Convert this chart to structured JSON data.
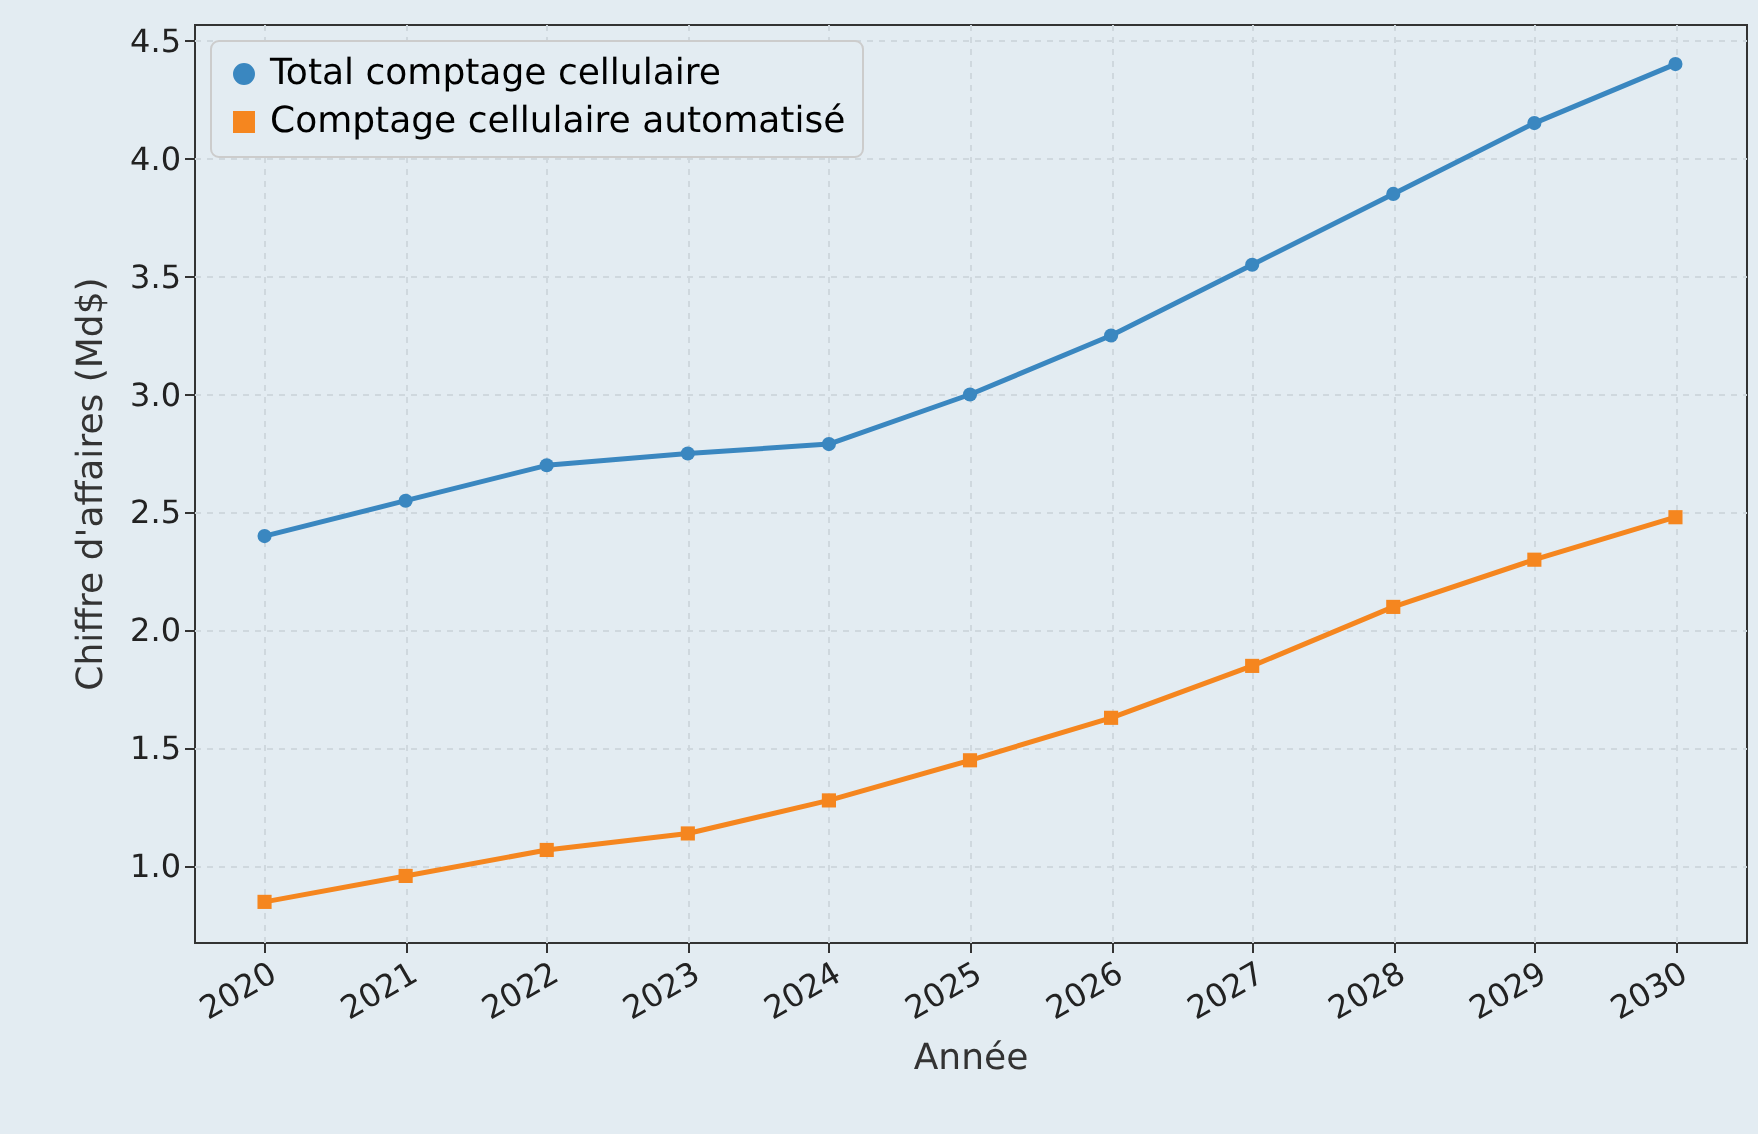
{
  "chart_data": {
    "type": "line",
    "xlabel": "Année",
    "ylabel": "Chiffre d'affaires (Md$)",
    "x": [
      2020,
      2021,
      2022,
      2023,
      2024,
      2025,
      2026,
      2027,
      2028,
      2029,
      2030
    ],
    "series": [
      {
        "name": "Total comptage cellulaire",
        "color": "#3a87c0",
        "marker": "circle",
        "values": [
          2.4,
          2.55,
          2.7,
          2.75,
          2.79,
          3.0,
          3.25,
          3.55,
          3.85,
          4.15,
          4.4
        ]
      },
      {
        "name": "Comptage cellulaire automatisé",
        "color": "#f5861f",
        "marker": "square",
        "values": [
          0.85,
          0.96,
          1.07,
          1.14,
          1.28,
          1.45,
          1.63,
          1.85,
          2.1,
          2.3,
          2.48
        ]
      }
    ],
    "xlim": [
      2019.5,
      2030.5
    ],
    "xticks": [
      2020,
      2021,
      2022,
      2023,
      2024,
      2025,
      2026,
      2027,
      2028,
      2029,
      2030
    ],
    "ylim": [
      0.68,
      4.57
    ],
    "yticks": [
      {
        "value": 1,
        "label": "1.0"
      },
      1.5,
      {
        "value": 2,
        "label": "2.0"
      },
      2.5,
      {
        "value": 3,
        "label": "3.0"
      },
      3.5,
      {
        "value": 4,
        "label": "4.0"
      },
      4.5
    ],
    "grid": true,
    "legend": "top left",
    "line_style": "solid"
  }
}
